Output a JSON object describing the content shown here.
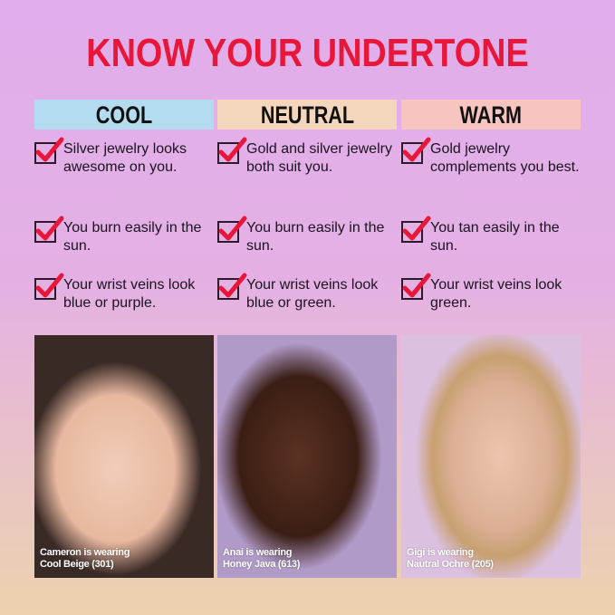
{
  "title": "KNOW YOUR UNDERTONE",
  "columns": [
    {
      "label": "COOL",
      "color": "#b4dcf0",
      "items": [
        "Silver jewelry looks awesome on you.",
        "You burn easily in the sun.",
        "Your wrist veins look blue or purple."
      ],
      "caption": [
        "Cameron is wearing",
        "Cool Beige (301)"
      ]
    },
    {
      "label": "NEUTRAL",
      "color": "#f4d6bc",
      "items": [
        "Gold and silver jewelry both suit you.",
        "You burn easily in the sun.",
        "Your wrist veins look blue or green."
      ],
      "caption": [
        "Anai is wearing",
        "Honey Java (613)"
      ]
    },
    {
      "label": "WARM",
      "color": "#f8c4c0",
      "items": [
        "Gold jewelry complements you best.",
        "You tan easily in the sun.",
        "Your wrist veins look green."
      ],
      "caption": [
        "Gigi is wearing",
        "Nautral Ochre (205)"
      ]
    }
  ],
  "accent": "#e8173a"
}
